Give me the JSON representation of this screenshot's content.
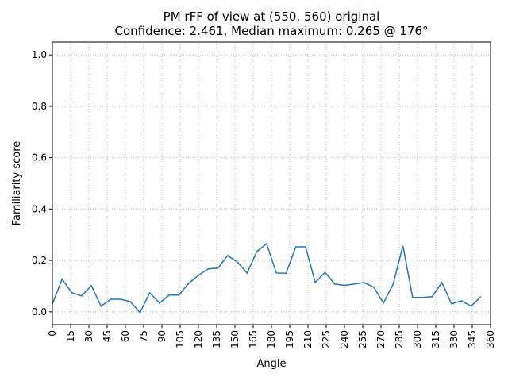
{
  "chart_data": {
    "type": "line",
    "title": "PM rFF of view at (550, 560) original",
    "subtitle": "Confidence: 2.461, Median maximum: 0.265 @ 176°",
    "x_label": "Angle",
    "y_label": "Familiarity score",
    "x": [
      0,
      8,
      16,
      24,
      32,
      40,
      48,
      56,
      64,
      72,
      80,
      88,
      96,
      104,
      112,
      120,
      128,
      136,
      144,
      152,
      160,
      168,
      176,
      184,
      192,
      200,
      208,
      216,
      224,
      232,
      240,
      248,
      256,
      264,
      272,
      280,
      288,
      296,
      304,
      312,
      320,
      328,
      336,
      344,
      352
    ],
    "series": [
      {
        "color": "#1f77b4",
        "values": [
          0.031,
          0.127,
          0.074,
          0.062,
          0.102,
          0.022,
          0.049,
          0.049,
          0.04,
          -0.003,
          0.074,
          0.034,
          0.065,
          0.065,
          0.111,
          0.142,
          0.167,
          0.17,
          0.219,
          0.194,
          0.151,
          0.235,
          0.265,
          0.151,
          0.15,
          0.253,
          0.253,
          0.114,
          0.154,
          0.108,
          0.103,
          0.108,
          0.114,
          0.096,
          0.034,
          0.108,
          0.257,
          0.056,
          0.056,
          0.059,
          0.114,
          0.031,
          0.043,
          0.022,
          0.059
        ]
      }
    ],
    "xlim": [
      0,
      360
    ],
    "xticks": [
      0,
      15,
      30,
      45,
      60,
      75,
      90,
      105,
      120,
      135,
      150,
      165,
      180,
      195,
      210,
      225,
      240,
      255,
      270,
      285,
      300,
      315,
      330,
      345,
      360
    ],
    "ylim": [
      -0.05,
      1.05
    ],
    "yticks": [
      {
        "value": 0,
        "label": "0.0"
      },
      0.2,
      0.4,
      0.6,
      0.8,
      {
        "value": 1,
        "label": "1.0"
      }
    ],
    "grid": true
  }
}
